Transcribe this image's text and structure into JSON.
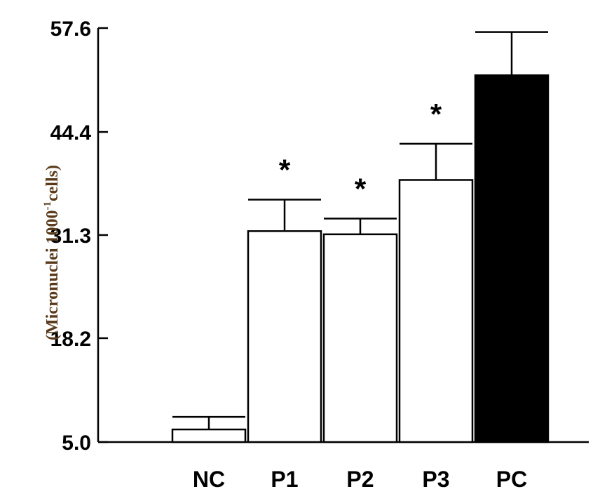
{
  "chart_data": {
    "type": "bar",
    "categories": [
      "NC",
      "P1",
      "P2",
      "P3",
      "PC"
    ],
    "values": [
      6.6,
      31.8,
      31.4,
      38.3,
      51.6
    ],
    "errors": [
      1.6,
      4.0,
      2.0,
      4.6,
      5.5
    ],
    "significance": [
      "",
      "*",
      "*",
      "*",
      ""
    ],
    "fill_colors": [
      "#ffffff",
      "#ffffff",
      "#ffffff",
      "#ffffff",
      "#000000"
    ],
    "ylabel_parts": [
      "(Micronuclei 1000",
      "-1",
      "cells)"
    ],
    "yticks": [
      "5.0",
      "18.2",
      "31.3",
      "44.4",
      "57.6"
    ],
    "ylim": [
      5.0,
      57.6
    ],
    "grid": false
  }
}
